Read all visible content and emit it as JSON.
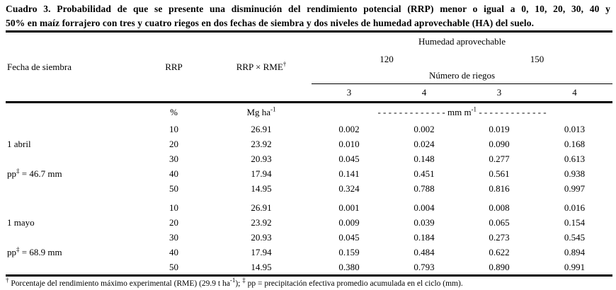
{
  "title": {
    "line1": "Cuadro 3. Probabilidad de que se presente una disminución del rendimiento potencial (RRP) menor o igual a 0, 10, 20, 30, 40 y",
    "line2": "50% en maíz forrajero con tres y cuatro riegos en dos fechas de siembra y dos niveles de humedad aprovechable (HA) del suelo."
  },
  "table": {
    "header": {
      "humedad": "Humedad aprovechable",
      "fecha": "Fecha de siembra",
      "rrp": "RRP",
      "rrp_rme_parts": [
        {
          "t": "RRP × RME"
        },
        {
          "t": "†",
          "sup": true
        }
      ],
      "ha_levels": [
        "120",
        "150"
      ],
      "numero_riegos": "Número de riegos",
      "riegos": [
        "3",
        "4",
        "3",
        "4"
      ]
    },
    "units": {
      "rrp": "%",
      "rme_parts": [
        {
          "t": "Mg ha"
        },
        {
          "t": "-1",
          "sup": true
        }
      ],
      "mm_parts": [
        {
          "t": "- - - - - - - - - - - - -  mm m"
        },
        {
          "t": "-1",
          "sup": true
        },
        {
          "t": "  - - - - - - - - - - - - -"
        }
      ]
    },
    "blocks": [
      {
        "date_parts": [
          {
            "t": "1 abril"
          }
        ],
        "pp_parts": [
          {
            "t": "pp"
          },
          {
            "t": "‡",
            "sup": true
          },
          {
            "t": " = 46.7 mm"
          }
        ],
        "rows": [
          {
            "rrp": "10",
            "rme": "26.91",
            "p": [
              "0.002",
              "0.002",
              "0.019",
              "0.013"
            ]
          },
          {
            "rrp": "20",
            "rme": "23.92",
            "p": [
              "0.010",
              "0.024",
              "0.090",
              "0.168"
            ]
          },
          {
            "rrp": "30",
            "rme": "20.93",
            "p": [
              "0.045",
              "0.148",
              "0.277",
              "0.613"
            ]
          },
          {
            "rrp": "40",
            "rme": "17.94",
            "p": [
              "0.141",
              "0.451",
              "0.561",
              "0.938"
            ]
          },
          {
            "rrp": "50",
            "rme": "14.95",
            "p": [
              "0.324",
              "0.788",
              "0.816",
              "0.997"
            ]
          }
        ]
      },
      {
        "date_parts": [
          {
            "t": "1 mayo"
          }
        ],
        "pp_parts": [
          {
            "t": "pp"
          },
          {
            "t": "‡",
            "sup": true
          },
          {
            "t": " = 68.9 mm"
          }
        ],
        "rows": [
          {
            "rrp": "10",
            "rme": "26.91",
            "p": [
              "0.001",
              "0.004",
              "0.008",
              "0.016"
            ]
          },
          {
            "rrp": "20",
            "rme": "23.92",
            "p": [
              "0.009",
              "0.039",
              "0.065",
              "0.154"
            ]
          },
          {
            "rrp": "30",
            "rme": "20.93",
            "p": [
              "0.045",
              "0.184",
              "0.273",
              "0.545"
            ]
          },
          {
            "rrp": "40",
            "rme": "17.94",
            "p": [
              "0.159",
              "0.484",
              "0.622",
              "0.894"
            ]
          },
          {
            "rrp": "50",
            "rme": "14.95",
            "p": [
              "0.380",
              "0.793",
              "0.890",
              "0.991"
            ]
          }
        ]
      }
    ]
  },
  "footnote": {
    "parts": [
      {
        "t": "†",
        "sup": true
      },
      {
        "t": " Porcentaje del rendimiento máximo experimental (RME) (29.9 t ha"
      },
      {
        "t": "-1",
        "sup": true
      },
      {
        "t": "); "
      },
      {
        "t": "‡",
        "sup": true
      },
      {
        "t": " pp = precipitación efectiva promedio acumulada en el ciclo (mm)."
      }
    ]
  }
}
